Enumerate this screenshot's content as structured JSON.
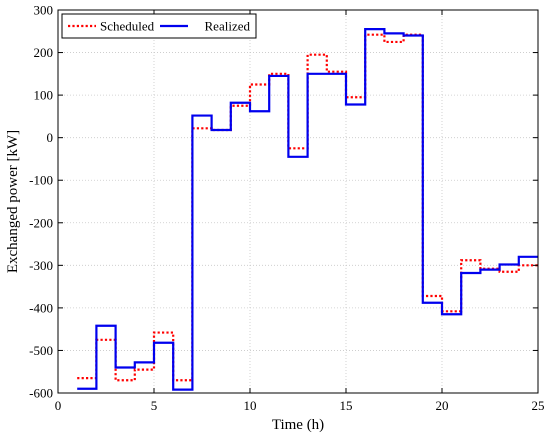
{
  "chart_data": {
    "type": "line",
    "step": "post",
    "xlabel": "Time (h)",
    "ylabel": "Exchanged power [kW]",
    "xlim": [
      0,
      25
    ],
    "ylim": [
      -600,
      300
    ],
    "xticks": [
      0,
      5,
      10,
      15,
      20,
      25
    ],
    "yticks": [
      -600,
      -500,
      -400,
      -300,
      -200,
      -100,
      0,
      100,
      200,
      300
    ],
    "grid": true,
    "legend_position": "top-left",
    "x": [
      1,
      2,
      3,
      4,
      5,
      6,
      7,
      8,
      9,
      10,
      11,
      12,
      13,
      14,
      15,
      16,
      17,
      18,
      19,
      20,
      21,
      22,
      23,
      24,
      25
    ],
    "series": [
      {
        "name": "Scheduled",
        "color": "#ff0000",
        "style": "dotted",
        "values": [
          -565,
          -475,
          -570,
          -545,
          -458,
          -570,
          22,
          18,
          75,
          125,
          150,
          -25,
          195,
          155,
          95,
          242,
          225,
          242,
          -372,
          -408,
          -288,
          -308,
          -315,
          -300,
          -300
        ]
      },
      {
        "name": "Realized",
        "color": "#0000ee",
        "style": "solid",
        "values": [
          -590,
          -442,
          -540,
          -528,
          -482,
          -592,
          52,
          18,
          82,
          62,
          145,
          -45,
          150,
          150,
          78,
          255,
          245,
          240,
          -388,
          -415,
          -318,
          -310,
          -298,
          -280,
          -280
        ]
      }
    ]
  }
}
